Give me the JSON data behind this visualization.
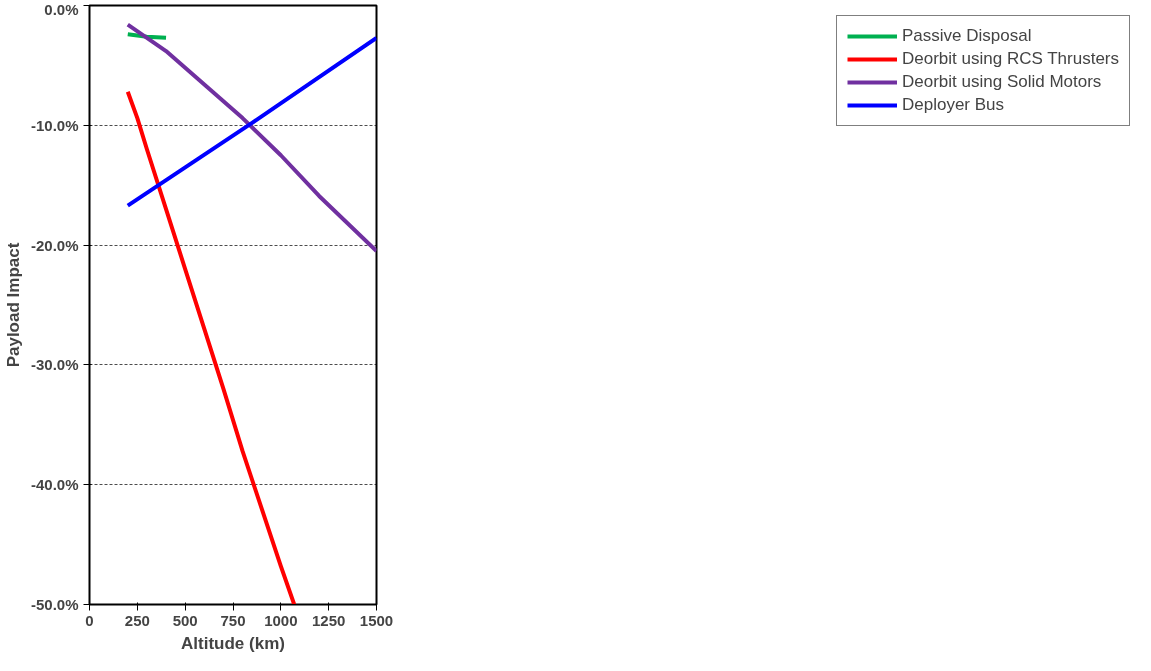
{
  "chart_data": {
    "type": "line",
    "xlabel": "Altitude (km)",
    "ylabel": "Payload Impact",
    "xlim": [
      0,
      1500
    ],
    "xticks": [
      0,
      250,
      500,
      750,
      1000,
      1250,
      1500
    ],
    "ylim": [
      -50,
      0
    ],
    "yticks": [
      {
        "value": -50,
        "label": "-50.0%"
      },
      {
        "value": -40,
        "label": "-40.0%"
      },
      {
        "value": -30,
        "label": "-30.0%"
      },
      {
        "value": -20,
        "label": "-20.0%"
      },
      {
        "value": -10,
        "label": "-10.0%"
      },
      {
        "value": 0,
        "label": "0.0%"
      }
    ],
    "grid": "y",
    "legend": "right",
    "marker": "none",
    "line_style": "solid",
    "series": [
      {
        "name": "Passive Disposal",
        "color": "#00b050",
        "x": [
          200,
          300,
          400
        ],
        "values": [
          -2.4,
          -2.6,
          -2.7
        ]
      },
      {
        "name": "Deorbit using RCS Thrusters",
        "color": "#ff0000",
        "x": [
          200,
          250,
          300,
          400,
          500,
          600,
          700,
          800,
          900,
          1000,
          1070
        ],
        "values": [
          -7.2,
          -9.4,
          -12.0,
          -17.0,
          -22.0,
          -27.0,
          -32.0,
          -37.2,
          -42.0,
          -46.8,
          -50.0
        ]
      },
      {
        "name": "Deorbit using Solid Motors",
        "color": "#7030a0",
        "x": [
          200,
          400,
          600,
          800,
          1000,
          1200,
          1500
        ],
        "values": [
          -1.6,
          -3.8,
          -6.6,
          -9.4,
          -12.5,
          -15.9,
          -20.5
        ]
      },
      {
        "name": "Deployer Bus",
        "color": "#0000ff",
        "x": [
          200,
          850,
          1500
        ],
        "values": [
          -16.7,
          -9.8,
          -2.7
        ]
      }
    ]
  }
}
